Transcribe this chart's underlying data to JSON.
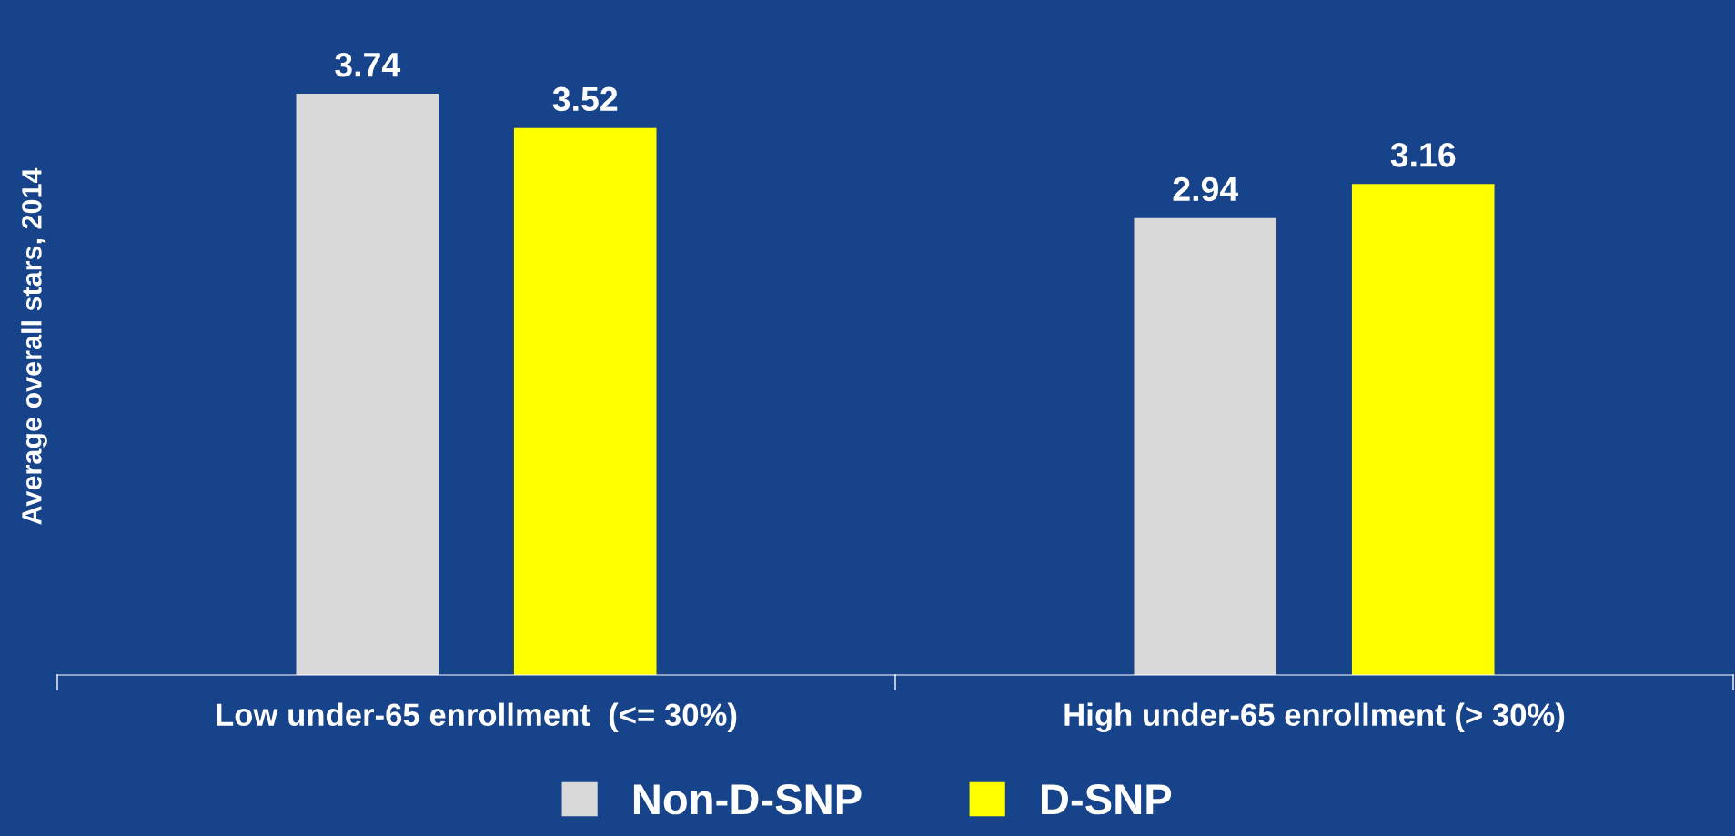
{
  "chart_data": {
    "type": "bar",
    "ylabel": "Average overall stars, 2014",
    "categories": [
      "Low under-65 enrollment  (<= 30%)",
      "High under-65 enrollment (> 30%)"
    ],
    "series": [
      {
        "name": "Non-D-SNP",
        "color": "#d9d9d9",
        "values": [
          3.74,
          2.94
        ]
      },
      {
        "name": "D-SNP",
        "color": "#ffff00",
        "values": [
          3.52,
          3.16
        ]
      }
    ],
    "data_labels": true,
    "legend": "bottom",
    "grid": false
  }
}
